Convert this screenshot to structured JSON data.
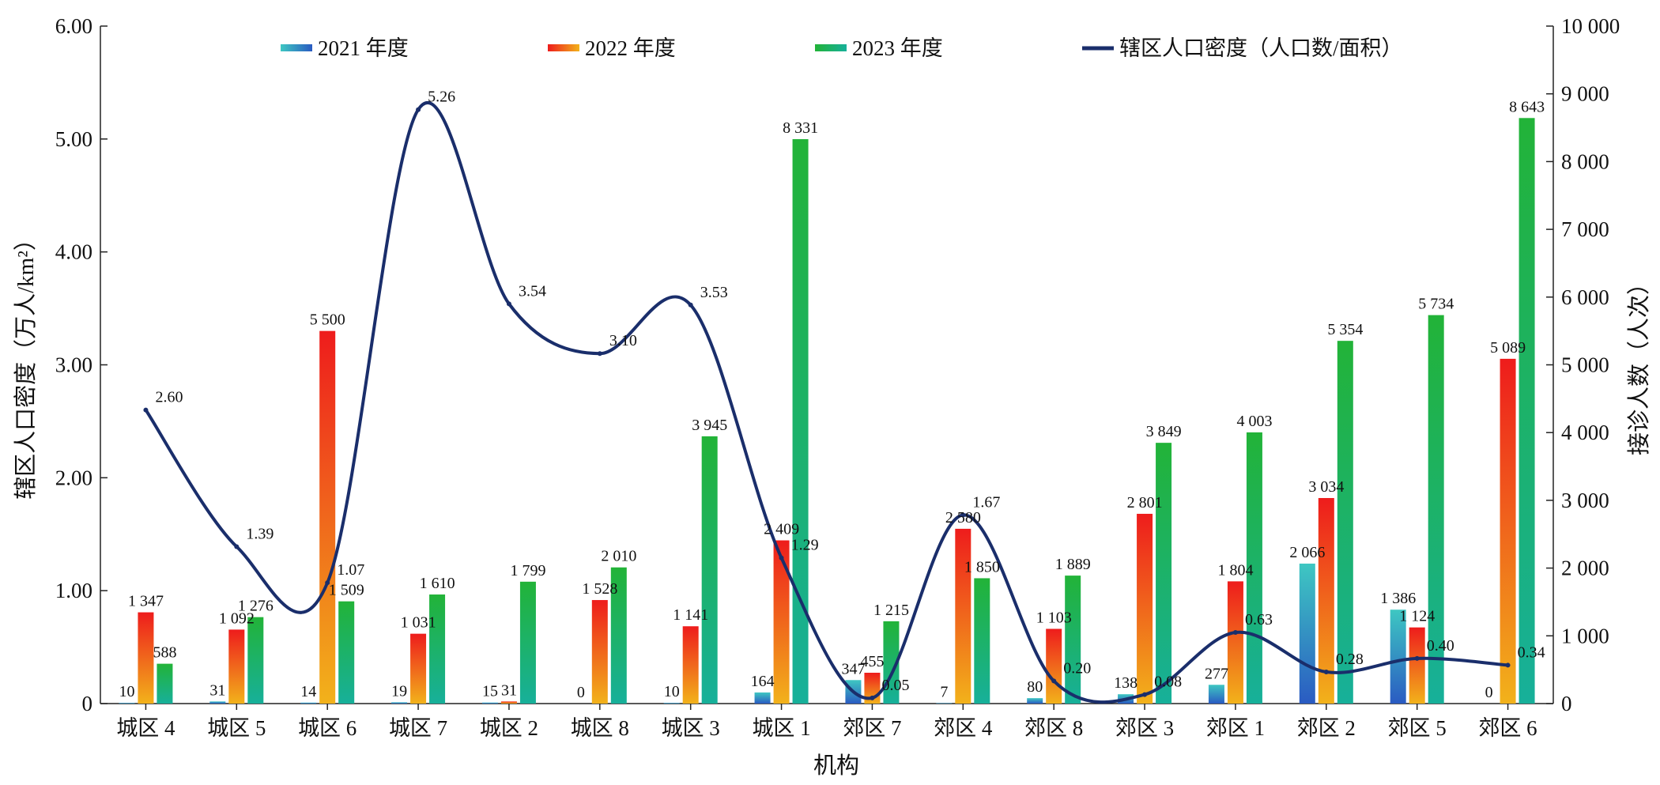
{
  "chart_data": {
    "type": "bar",
    "xlabel": "机构",
    "ylabel_left": "辖区人口密度（万人/km²）",
    "ylabel_right": "接诊人数（人次）",
    "ylim_left": [
      0,
      6
    ],
    "ylim_right": [
      0,
      10000
    ],
    "left_ticks": [
      "0",
      "1.00",
      "2.00",
      "3.00",
      "4.00",
      "5.00",
      "6.00"
    ],
    "right_ticks": [
      "0",
      "1 000",
      "2 000",
      "3 000",
      "4 000",
      "5 000",
      "6 000",
      "7 000",
      "8 000",
      "9 000",
      "10 000"
    ],
    "categories": [
      "城区 4",
      "城区 5",
      "城区 6",
      "城区 7",
      "城区 2",
      "城区 8",
      "城区 3",
      "城区 1",
      "郊区 7",
      "郊区 4",
      "郊区 8",
      "郊区 3",
      "郊区 1",
      "郊区 2",
      "郊区 5",
      "郊区 6"
    ],
    "series": [
      {
        "name": "2021 年度",
        "axis": "right",
        "values": [
          10,
          31,
          14,
          19,
          15,
          0,
          10,
          164,
          347,
          7,
          80,
          138,
          277,
          2066,
          1386,
          0
        ],
        "labels": [
          "10",
          "31",
          "14",
          "19",
          "15",
          "0",
          "10",
          "164",
          "347",
          "7",
          "80",
          "138",
          "277",
          "2 066",
          "1 386",
          "0"
        ],
        "colors": [
          "#2a5bc2",
          "#3ec7c2"
        ]
      },
      {
        "name": "2022 年度",
        "axis": "right",
        "values": [
          1347,
          1092,
          5500,
          1031,
          31,
          1528,
          1141,
          2409,
          455,
          2580,
          1103,
          2801,
          1804,
          3034,
          1124,
          5089
        ],
        "labels": [
          "1 347",
          "1 092",
          "5 500",
          "1 031",
          "31",
          "1 528",
          "1 141",
          "2 409",
          "455",
          "2 580",
          "1 103",
          "2 801",
          "1 804",
          "3 034",
          "1 124",
          "5 089"
        ],
        "colors": [
          "#f2b21b",
          "#ee1c1c"
        ]
      },
      {
        "name": "2023 年度",
        "axis": "right",
        "values": [
          588,
          1276,
          1509,
          1610,
          1799,
          2010,
          3945,
          8331,
          1215,
          1850,
          1889,
          3849,
          4003,
          5354,
          5734,
          8643
        ],
        "labels": [
          "588",
          "1 276",
          "1 509",
          "1 610",
          "1 799",
          "2 010",
          "3 945",
          "8 331",
          "1 215",
          "1 850",
          "1 889",
          "3 849",
          "4 003",
          "5 354",
          "5 734",
          "8 643"
        ],
        "colors": [
          "#17b09a",
          "#22b338"
        ]
      },
      {
        "name": "辖区人口密度（人口数/面积）",
        "axis": "left",
        "type": "line",
        "values": [
          2.6,
          1.39,
          1.07,
          5.26,
          3.54,
          3.1,
          3.53,
          1.29,
          0.05,
          1.67,
          0.2,
          0.08,
          0.63,
          0.28,
          0.4,
          0.34
        ],
        "labels": [
          "2.60",
          "1.39",
          "1.07",
          "5.26",
          "3.54",
          "3.10",
          "3.53",
          "1.29",
          "0.05",
          "1.67",
          "0.20",
          "0.08",
          "0.63",
          "0.28",
          "0.40",
          "0.34"
        ],
        "color": "#1a2e6b"
      }
    ]
  }
}
